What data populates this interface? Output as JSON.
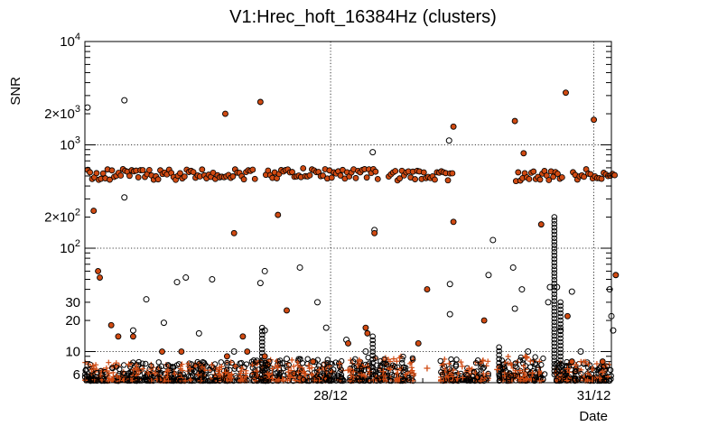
{
  "chart_data": {
    "type": "scatter",
    "title": "V1:Hrec_hoft_16384Hz (clusters)",
    "xlabel": "Date",
    "ylabel": "SNR",
    "yscale": "log",
    "ylim": [
      5,
      10000
    ],
    "xlim_days": [
      0,
      6
    ],
    "x_ticks": [
      {
        "label": "28/12",
        "day": 2.8
      },
      {
        "label": "31/12",
        "day": 5.8
      }
    ],
    "y_ticks": [
      {
        "label": "10^4",
        "base": "10",
        "exp": "4",
        "value": 10000
      },
      {
        "label": "2×10^3",
        "value": 2000
      },
      {
        "label": "10^3",
        "base": "10",
        "exp": "3",
        "value": 1000
      },
      {
        "label": "2×10^2",
        "value": 200
      },
      {
        "label": "10^2",
        "base": "10",
        "exp": "2",
        "value": 100
      },
      {
        "label": "30",
        "value": 30
      },
      {
        "label": "20",
        "value": 20
      },
      {
        "label": "10",
        "value": 10
      },
      {
        "label": "6",
        "value": 6
      }
    ],
    "grid": true,
    "series": [
      {
        "marker": "circle-open",
        "color": "#000000",
        "points": [
          [
            0.03,
            2300
          ],
          [
            0.45,
            2700
          ],
          [
            0.45,
            310
          ],
          [
            0.55,
            16
          ],
          [
            0.7,
            32
          ],
          [
            0.9,
            19
          ],
          [
            1.05,
            47
          ],
          [
            1.15,
            52
          ],
          [
            1.3,
            15
          ],
          [
            1.45,
            50
          ],
          [
            1.7,
            10
          ],
          [
            2.0,
            46
          ],
          [
            2.05,
            60
          ],
          [
            2.05,
            16
          ],
          [
            2.1,
            8
          ],
          [
            2.3,
            8.5
          ],
          [
            2.45,
            65
          ],
          [
            2.65,
            30
          ],
          [
            2.75,
            17
          ],
          [
            2.98,
            13
          ],
          [
            3.2,
            10
          ],
          [
            3.28,
            850
          ],
          [
            3.3,
            150
          ],
          [
            4.15,
            1100
          ],
          [
            4.16,
            45
          ],
          [
            4.16,
            23
          ],
          [
            4.65,
            120
          ],
          [
            4.6,
            55
          ],
          [
            4.88,
            65
          ],
          [
            4.9,
            26
          ],
          [
            4.98,
            40
          ],
          [
            5.05,
            10
          ],
          [
            5.28,
            30
          ],
          [
            5.3,
            42
          ],
          [
            5.38,
            42
          ],
          [
            5.42,
            16
          ],
          [
            5.55,
            38
          ],
          [
            5.65,
            10
          ],
          [
            5.98,
            40
          ],
          [
            6.0,
            22
          ],
          [
            6.02,
            16
          ]
        ]
      },
      {
        "marker": "circle-plus",
        "color": "#d04a12",
        "points": [
          [
            0.1,
            230
          ],
          [
            0.15,
            60
          ],
          [
            0.17,
            52
          ],
          [
            0.3,
            18
          ],
          [
            0.38,
            14
          ],
          [
            0.55,
            14
          ],
          [
            0.88,
            10
          ],
          [
            1.1,
            10
          ],
          [
            1.6,
            2000
          ],
          [
            1.62,
            9
          ],
          [
            1.7,
            140
          ],
          [
            1.8,
            14
          ],
          [
            1.85,
            10
          ],
          [
            2.0,
            2600
          ],
          [
            2.2,
            210
          ],
          [
            2.05,
            9
          ],
          [
            2.3,
            25
          ],
          [
            2.6,
            8
          ],
          [
            3.0,
            12
          ],
          [
            3.2,
            17
          ],
          [
            3.22,
            15
          ],
          [
            3.3,
            140
          ],
          [
            3.8,
            12
          ],
          [
            3.9,
            40
          ],
          [
            4.2,
            180
          ],
          [
            4.2,
            1500
          ],
          [
            4.55,
            20
          ],
          [
            4.9,
            1700
          ],
          [
            5.0,
            830
          ],
          [
            5.2,
            170
          ],
          [
            5.48,
            3200
          ],
          [
            5.5,
            22
          ],
          [
            5.8,
            1750
          ],
          [
            5.55,
            8
          ],
          [
            5.9,
            8
          ],
          [
            6.05,
            55
          ]
        ]
      },
      {
        "marker": "plus",
        "color": "#d04a12",
        "points": [
          [
            0.25,
            6.5
          ],
          [
            0.5,
            7.5
          ],
          [
            0.8,
            6.2
          ],
          [
            1.2,
            6.8
          ],
          [
            1.6,
            6.3
          ],
          [
            2.2,
            7.0
          ],
          [
            2.5,
            6.1
          ],
          [
            3.0,
            6.6
          ],
          [
            3.4,
            6.4
          ],
          [
            3.9,
            6.9
          ],
          [
            4.3,
            7.2
          ],
          [
            4.7,
            6.7
          ],
          [
            5.1,
            6.2
          ],
          [
            5.5,
            6.8
          ],
          [
            5.9,
            6.3
          ]
        ]
      }
    ],
    "dense_bands": [
      {
        "x_range": [
          0.0,
          0.78
        ],
        "snr_range": [
          5.2,
          8
        ]
      },
      {
        "x_range": [
          0.82,
          1.85
        ],
        "snr_range": [
          5.2,
          8
        ]
      },
      {
        "x_range": [
          1.9,
          2.95
        ],
        "snr_range": [
          5.2,
          8.5
        ]
      },
      {
        "x_range": [
          3.0,
          3.75
        ],
        "snr_range": [
          5.2,
          9
        ]
      },
      {
        "x_range": [
          4.05,
          4.6
        ],
        "snr_range": [
          5.2,
          8.5
        ]
      },
      {
        "x_range": [
          4.72,
          5.25
        ],
        "snr_range": [
          5.2,
          9
        ]
      },
      {
        "x_range": [
          5.35,
          6.0
        ],
        "snr_range": [
          5.2,
          8
        ]
      }
    ],
    "plateau_segments": [
      {
        "x_range": [
          0.02,
          1.95
        ],
        "snr": 520
      },
      {
        "x_range": [
          2.05,
          3.35
        ],
        "snr": 530
      },
      {
        "x_range": [
          3.45,
          4.2
        ],
        "snr": 510
      },
      {
        "x_range": [
          4.9,
          5.45
        ],
        "snr": 500
      },
      {
        "x_range": [
          5.55,
          6.05
        ],
        "snr": 520
      }
    ],
    "spikes": [
      {
        "x": 2.02,
        "snr_range": [
          6,
          17
        ]
      },
      {
        "x": 3.28,
        "snr_range": [
          6,
          14
        ]
      },
      {
        "x": 4.72,
        "snr_range": [
          6,
          11
        ]
      },
      {
        "x": 5.35,
        "snr_range": [
          6,
          200
        ]
      },
      {
        "x": 5.42,
        "snr_range": [
          6,
          30
        ]
      }
    ]
  }
}
